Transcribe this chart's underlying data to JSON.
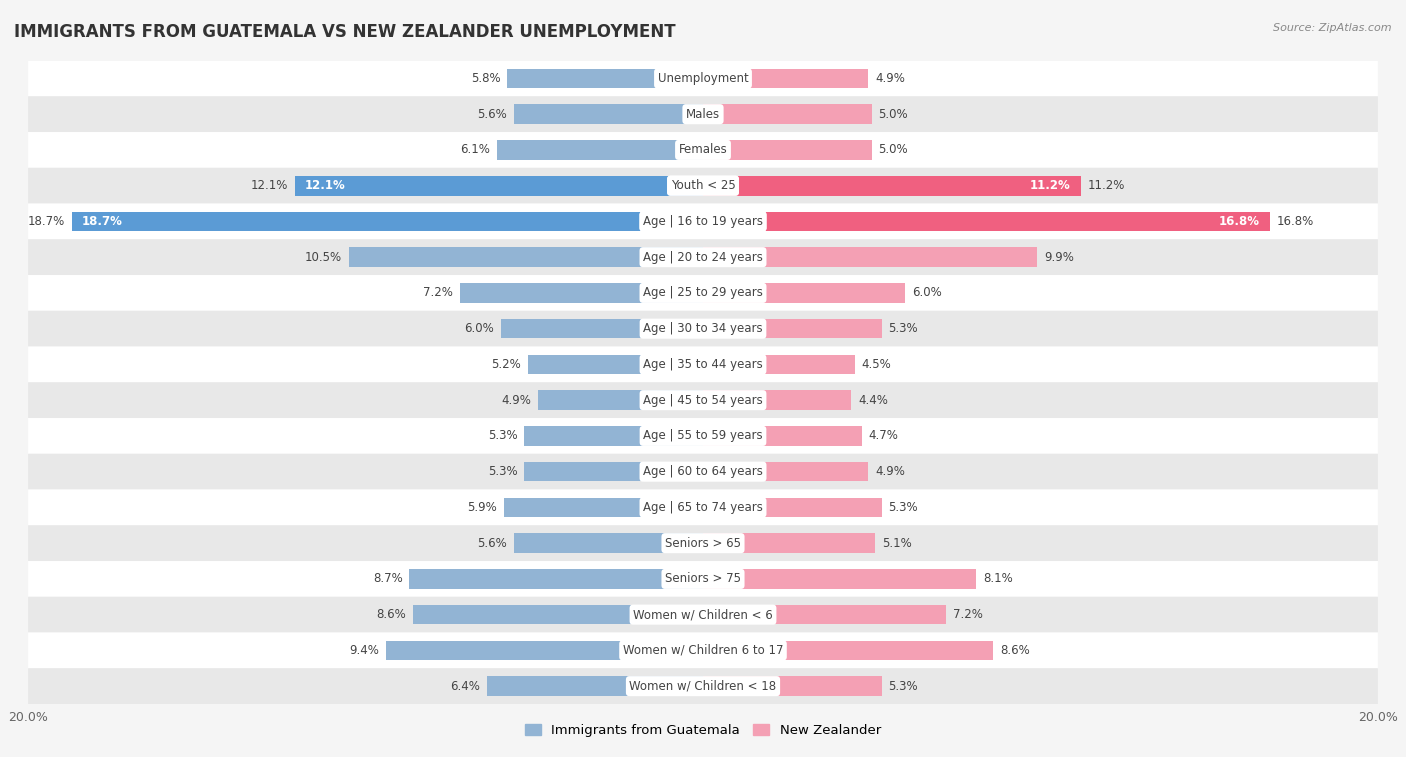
{
  "title": "IMMIGRANTS FROM GUATEMALA VS NEW ZEALANDER UNEMPLOYMENT",
  "source": "Source: ZipAtlas.com",
  "categories": [
    "Unemployment",
    "Males",
    "Females",
    "Youth < 25",
    "Age | 16 to 19 years",
    "Age | 20 to 24 years",
    "Age | 25 to 29 years",
    "Age | 30 to 34 years",
    "Age | 35 to 44 years",
    "Age | 45 to 54 years",
    "Age | 55 to 59 years",
    "Age | 60 to 64 years",
    "Age | 65 to 74 years",
    "Seniors > 65",
    "Seniors > 75",
    "Women w/ Children < 6",
    "Women w/ Children 6 to 17",
    "Women w/ Children < 18"
  ],
  "guatemala_values": [
    5.8,
    5.6,
    6.1,
    12.1,
    18.7,
    10.5,
    7.2,
    6.0,
    5.2,
    4.9,
    5.3,
    5.3,
    5.9,
    5.6,
    8.7,
    8.6,
    9.4,
    6.4
  ],
  "nz_values": [
    4.9,
    5.0,
    5.0,
    11.2,
    16.8,
    9.9,
    6.0,
    5.3,
    4.5,
    4.4,
    4.7,
    4.9,
    5.3,
    5.1,
    8.1,
    7.2,
    8.6,
    5.3
  ],
  "guatemala_color": "#92b4d4",
  "nz_color": "#f4a0b4",
  "guatemala_highlight_color": "#5b9bd5",
  "nz_highlight_color": "#f06080",
  "highlight_indices": [
    3,
    4
  ],
  "axis_limit": 20.0,
  "bg_light": "#f5f5f5",
  "bg_dark": "#e8e8e8",
  "legend_guatemala": "Immigrants from Guatemala",
  "legend_nz": "New Zealander",
  "bar_height": 0.55,
  "label_fontsize": 8.5,
  "value_fontsize": 8.5,
  "title_fontsize": 12
}
